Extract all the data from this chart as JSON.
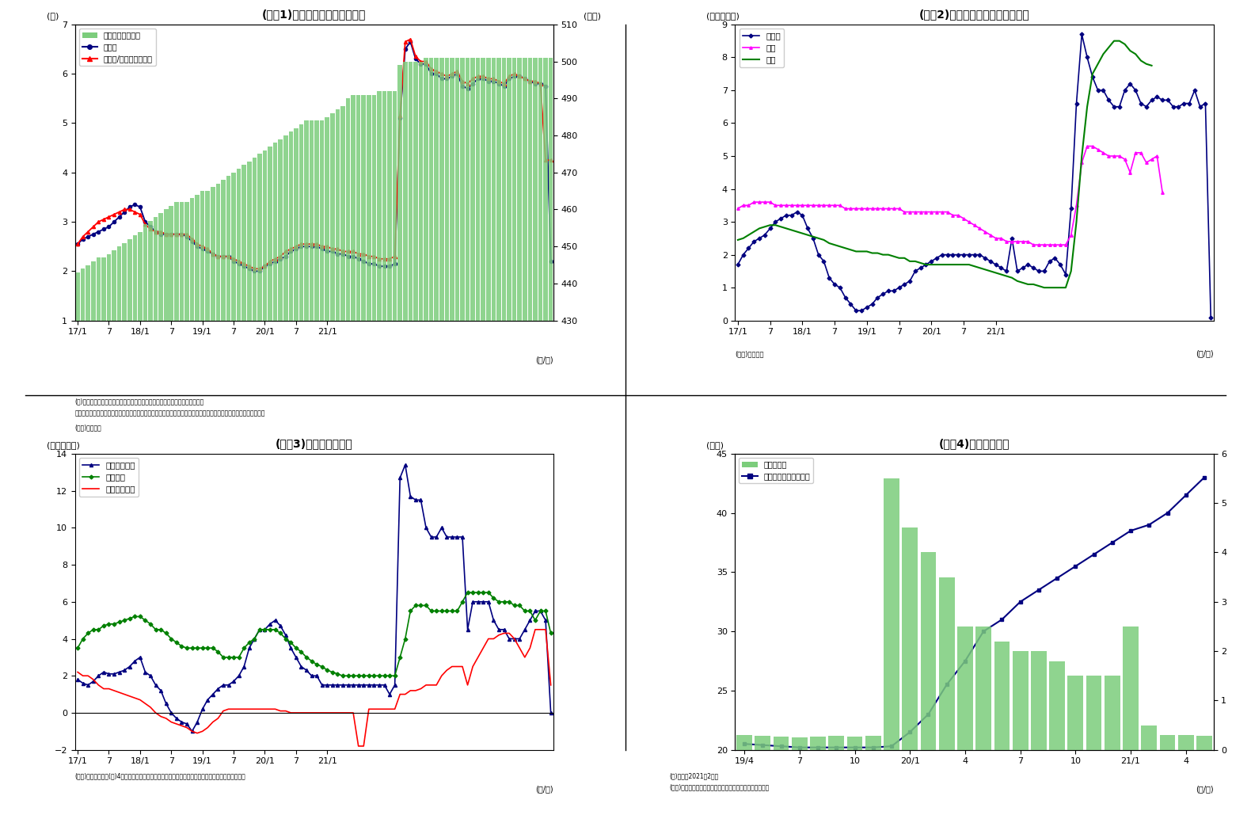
{
  "fig1": {
    "title": "(図表1)　銀行貸出残高の増減率",
    "ylabel_left": "(％)",
    "ylabel_right": "(兆円)",
    "xlabel": "(年/月)",
    "ylim_left": [
      1.0,
      7.0
    ],
    "ylim_right": [
      430,
      510
    ],
    "note1": "(注)特殊要因調整後は、為替変動・債権償却・流動化等の影響を考慮したもの",
    "note2": "　　特殊要因調整後の前年比＝（今月の調整後貸出残高－前年同月の調整前貸出残高）／前年同月の調整前貸出残高",
    "source": "(資料)日本銀行",
    "bar_values": [
      443,
      444,
      445,
      446,
      447,
      447,
      448,
      449,
      450,
      451,
      452,
      453,
      454,
      456,
      457,
      458,
      459,
      460,
      461,
      462,
      462,
      462,
      463,
      464,
      465,
      465,
      466,
      467,
      468,
      469,
      470,
      471,
      472,
      473,
      474,
      475,
      476,
      477,
      478,
      479,
      480,
      481,
      482,
      483,
      484,
      484,
      484,
      484,
      485,
      486,
      487,
      488,
      490,
      491,
      491,
      491,
      491,
      491,
      492,
      492,
      492,
      492,
      499,
      500,
      500,
      500,
      500,
      501,
      501,
      501,
      501,
      501,
      501,
      501,
      501,
      501,
      501,
      501,
      501,
      501,
      501,
      501,
      501,
      501,
      501,
      501,
      501,
      501,
      501,
      501,
      501,
      501
    ],
    "yoy_values": [
      2.55,
      2.65,
      2.7,
      2.75,
      2.8,
      2.85,
      2.9,
      3.0,
      3.1,
      3.2,
      3.3,
      3.35,
      3.3,
      3.0,
      2.9,
      2.8,
      2.75,
      2.75,
      2.75,
      2.75,
      2.75,
      2.7,
      2.6,
      2.5,
      2.45,
      2.4,
      2.35,
      2.3,
      2.3,
      2.3,
      2.2,
      2.15,
      2.1,
      2.05,
      2.0,
      2.0,
      2.1,
      2.15,
      2.2,
      2.25,
      2.3,
      2.4,
      2.45,
      2.5,
      2.5,
      2.5,
      2.5,
      2.45,
      2.4,
      2.4,
      2.35,
      2.35,
      2.3,
      2.3,
      2.25,
      2.2,
      2.15,
      2.15,
      2.1,
      2.1,
      2.1,
      2.15,
      5.1,
      6.5,
      6.65,
      6.3,
      6.2,
      6.2,
      6.0,
      6.0,
      5.9,
      5.9,
      5.95,
      6.0,
      5.75,
      5.7,
      5.8,
      5.9,
      5.9,
      5.85,
      5.85,
      5.8,
      5.75,
      5.9,
      5.95,
      5.95,
      5.9,
      5.85,
      5.8,
      5.8,
      5.75,
      2.2
    ],
    "adjusted_values": [
      2.55,
      2.7,
      2.8,
      2.9,
      3.0,
      3.05,
      3.1,
      3.15,
      3.2,
      3.25,
      3.25,
      3.2,
      3.15,
      2.95,
      2.85,
      2.8,
      2.8,
      2.75,
      2.75,
      2.75,
      2.75,
      2.75,
      2.65,
      2.55,
      2.5,
      2.45,
      2.35,
      2.3,
      2.3,
      2.3,
      2.25,
      2.2,
      2.15,
      2.1,
      2.05,
      2.05,
      2.1,
      2.2,
      2.25,
      2.3,
      2.4,
      2.45,
      2.5,
      2.55,
      2.55,
      2.55,
      2.55,
      2.5,
      2.5,
      2.45,
      2.45,
      2.4,
      2.4,
      2.4,
      2.35,
      2.35,
      2.3,
      2.3,
      2.25,
      2.25,
      2.25,
      2.3,
      5.15,
      6.65,
      6.7,
      6.35,
      6.25,
      6.25,
      6.1,
      6.05,
      6.0,
      5.95,
      6.0,
      6.05,
      5.85,
      5.8,
      5.9,
      5.95,
      5.95,
      5.9,
      5.9,
      5.85,
      5.8,
      5.95,
      6.0,
      5.95,
      5.9,
      5.85,
      5.85,
      5.8,
      4.25,
      4.25
    ],
    "legend_bar": "貸出残高（右軸）",
    "legend_yoy": "前年比",
    "legend_adj": "前年比/特殊要因調整後"
  },
  "fig2": {
    "title": "(図表2)　業態別の貸出残高増減率",
    "ylabel_left": "(前年比、％)",
    "xlabel": "(年/月)",
    "ylim": [
      0,
      9
    ],
    "source": "(資料)日本銀行",
    "toshi_values": [
      1.7,
      2.0,
      2.2,
      2.4,
      2.5,
      2.6,
      2.8,
      3.0,
      3.1,
      3.2,
      3.2,
      3.3,
      3.2,
      2.8,
      2.5,
      2.0,
      1.8,
      1.3,
      1.1,
      1.0,
      0.7,
      0.5,
      0.3,
      0.3,
      0.4,
      0.5,
      0.7,
      0.8,
      0.9,
      0.9,
      1.0,
      1.1,
      1.2,
      1.5,
      1.6,
      1.7,
      1.8,
      1.9,
      2.0,
      2.0,
      2.0,
      2.0,
      2.0,
      2.0,
      2.0,
      2.0,
      1.9,
      1.8,
      1.7,
      1.6,
      1.5,
      2.5,
      1.5,
      1.6,
      1.7,
      1.6,
      1.5,
      1.5,
      1.8,
      1.9,
      1.7,
      1.4,
      3.4,
      6.6,
      8.7,
      8.0,
      7.4,
      7.0,
      7.0,
      6.7,
      6.5,
      6.5,
      7.0,
      7.2,
      7.0,
      6.6,
      6.5,
      6.7,
      6.8,
      6.7,
      6.7,
      6.5,
      6.5,
      6.6,
      6.6,
      7.0,
      6.5,
      6.6,
      0.1
    ],
    "chiginkei_values": [
      3.4,
      3.5,
      3.5,
      3.6,
      3.6,
      3.6,
      3.6,
      3.5,
      3.5,
      3.5,
      3.5,
      3.5,
      3.5,
      3.5,
      3.5,
      3.5,
      3.5,
      3.5,
      3.5,
      3.5,
      3.4,
      3.4,
      3.4,
      3.4,
      3.4,
      3.4,
      3.4,
      3.4,
      3.4,
      3.4,
      3.4,
      3.3,
      3.3,
      3.3,
      3.3,
      3.3,
      3.3,
      3.3,
      3.3,
      3.3,
      3.2,
      3.2,
      3.1,
      3.0,
      2.9,
      2.8,
      2.7,
      2.6,
      2.5,
      2.5,
      2.4,
      2.4,
      2.4,
      2.4,
      2.4,
      2.3,
      2.3,
      2.3,
      2.3,
      2.3,
      2.3,
      2.3,
      2.6,
      3.5,
      4.8,
      5.3,
      5.3,
      5.2,
      5.1,
      5.0,
      5.0,
      5.0,
      4.9,
      4.5,
      5.1,
      5.1,
      4.8,
      4.9,
      5.0,
      3.9
    ],
    "shinkin_values": [
      2.45,
      2.5,
      2.6,
      2.7,
      2.8,
      2.85,
      2.9,
      2.9,
      2.85,
      2.8,
      2.75,
      2.7,
      2.65,
      2.6,
      2.55,
      2.5,
      2.45,
      2.35,
      2.3,
      2.25,
      2.2,
      2.15,
      2.1,
      2.1,
      2.1,
      2.05,
      2.05,
      2.0,
      2.0,
      1.95,
      1.9,
      1.9,
      1.8,
      1.8,
      1.75,
      1.7,
      1.7,
      1.7,
      1.7,
      1.7,
      1.7,
      1.7,
      1.7,
      1.7,
      1.65,
      1.6,
      1.55,
      1.5,
      1.45,
      1.4,
      1.35,
      1.3,
      1.2,
      1.15,
      1.1,
      1.1,
      1.05,
      1.0,
      1.0,
      1.0,
      1.0,
      1.0,
      1.5,
      3.0,
      5.0,
      6.5,
      7.5,
      7.8,
      8.1,
      8.3,
      8.5,
      8.5,
      8.4,
      8.2,
      8.1,
      7.9,
      7.8,
      7.75
    ],
    "legend_toshi": "都銀等",
    "legend_chiginkei": "地銀",
    "legend_shinkin": "信金"
  },
  "fig3": {
    "title": "(図表3)貸出先別貸出金",
    "ylabel_left": "(前年比、％)",
    "xlabel": "(年/月)",
    "ylim": [
      -2,
      14
    ],
    "source": "(資料)日本銀行",
    "note": "(注)4月分まで（末残ベース）、大・中堅企業は「法人」－「中小企業」にて算出",
    "large_values": [
      1.8,
      1.6,
      1.5,
      1.7,
      2.0,
      2.2,
      2.1,
      2.1,
      2.2,
      2.3,
      2.5,
      2.8,
      3.0,
      2.2,
      2.0,
      1.5,
      1.2,
      0.5,
      0.0,
      -0.3,
      -0.5,
      -0.6,
      -1.0,
      -0.5,
      0.2,
      0.7,
      1.0,
      1.3,
      1.5,
      1.5,
      1.7,
      2.0,
      2.5,
      3.5,
      4.0,
      4.5,
      4.5,
      4.8,
      5.0,
      4.7,
      4.2,
      3.5,
      3.0,
      2.5,
      2.3,
      2.0,
      2.0,
      1.5,
      1.5,
      1.5,
      1.5,
      1.5,
      1.5,
      1.5,
      1.5,
      1.5,
      1.5,
      1.5,
      1.5,
      1.5,
      1.0,
      1.5,
      12.7,
      13.4,
      11.7,
      11.5,
      11.5,
      10.0,
      9.5,
      9.5,
      10.0,
      9.5,
      9.5,
      9.5,
      9.5,
      4.5,
      6.0,
      6.0,
      6.0,
      6.0,
      5.0,
      4.5,
      4.5,
      4.0,
      4.0,
      4.0,
      4.5,
      5.0,
      5.5,
      5.5,
      5.0,
      0.0
    ],
    "sme_values": [
      3.5,
      4.0,
      4.3,
      4.5,
      4.5,
      4.7,
      4.8,
      4.8,
      4.9,
      5.0,
      5.1,
      5.2,
      5.2,
      5.0,
      4.8,
      4.5,
      4.5,
      4.3,
      4.0,
      3.8,
      3.6,
      3.5,
      3.5,
      3.5,
      3.5,
      3.5,
      3.5,
      3.3,
      3.0,
      3.0,
      3.0,
      3.0,
      3.5,
      3.8,
      4.0,
      4.5,
      4.5,
      4.5,
      4.5,
      4.3,
      4.0,
      3.8,
      3.5,
      3.3,
      3.0,
      2.8,
      2.6,
      2.5,
      2.3,
      2.2,
      2.1,
      2.0,
      2.0,
      2.0,
      2.0,
      2.0,
      2.0,
      2.0,
      2.0,
      2.0,
      2.0,
      2.0,
      3.0,
      4.0,
      5.5,
      5.8,
      5.8,
      5.8,
      5.5,
      5.5,
      5.5,
      5.5,
      5.5,
      5.5,
      6.0,
      6.5,
      6.5,
      6.5,
      6.5,
      6.5,
      6.2,
      6.0,
      6.0,
      6.0,
      5.8,
      5.8,
      5.5,
      5.5,
      5.0,
      5.5,
      5.5,
      4.3
    ],
    "local_values": [
      2.2,
      2.0,
      2.0,
      1.8,
      1.5,
      1.3,
      1.3,
      1.2,
      1.1,
      1.0,
      0.9,
      0.8,
      0.7,
      0.5,
      0.3,
      0.0,
      -0.2,
      -0.3,
      -0.5,
      -0.6,
      -0.7,
      -0.8,
      -1.0,
      -1.1,
      -1.0,
      -0.8,
      -0.5,
      -0.3,
      0.1,
      0.2,
      0.2,
      0.2,
      0.2,
      0.2,
      0.2,
      0.2,
      0.2,
      0.2,
      0.2,
      0.1,
      0.1,
      0.0,
      0.0,
      0.0,
      0.0,
      0.0,
      0.0,
      0.0,
      0.0,
      0.0,
      0.0,
      0.0,
      0.0,
      0.0,
      -1.8,
      -1.8,
      0.2,
      0.2,
      0.2,
      0.2,
      0.2,
      0.2,
      1.0,
      1.0,
      1.2,
      1.2,
      1.3,
      1.5,
      1.5,
      1.5,
      2.0,
      2.3,
      2.5,
      2.5,
      2.5,
      1.5,
      2.5,
      3.0,
      3.5,
      4.0,
      4.0,
      4.2,
      4.3,
      4.3,
      4.0,
      3.5,
      3.0,
      3.5,
      4.5,
      4.5,
      4.5,
      1.5
    ],
    "legend_large": "大・中堅企業",
    "legend_sme": "中小企業",
    "legend_local": "地方公共団体"
  },
  "fig4": {
    "title": "(図表4)信用保証実績",
    "ylabel_left": "(兆円)",
    "ylabel_right": "(兆円)",
    "xlabel": "(年/月)",
    "ylim_left": [
      0,
      6
    ],
    "ylim_right": [
      20,
      45
    ],
    "source": "(資料)全国信用保証協会連合会よりニッセイ基礎研究所作成",
    "note": "(注)直近は2021年2月分",
    "bar_values": [
      0.3,
      0.28,
      0.27,
      0.25,
      0.27,
      0.28,
      0.27,
      0.28,
      5.5,
      4.5,
      4.0,
      3.5,
      2.5,
      2.5,
      2.2,
      2.0,
      2.0,
      1.8,
      1.5,
      1.5,
      1.5,
      2.5,
      0.5,
      0.3,
      0.3,
      0.28
    ],
    "bond_values": [
      20.5,
      20.4,
      20.3,
      20.2,
      20.2,
      20.2,
      20.2,
      20.2,
      20.3,
      21.5,
      23.0,
      25.5,
      27.5,
      30.0,
      31.0,
      32.5,
      33.5,
      34.5,
      35.5,
      36.5,
      37.5,
      38.5,
      39.0,
      40.0,
      41.5,
      43.0
    ],
    "legend_bar": "保証承諸額",
    "legend_bond": "保証債務残高（右軸）"
  }
}
